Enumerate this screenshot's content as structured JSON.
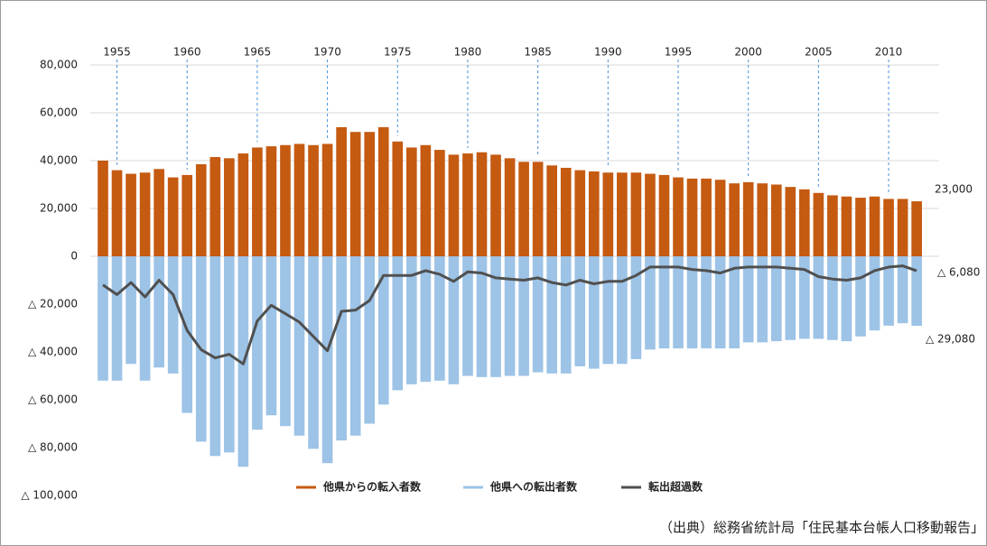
{
  "chart_data": {
    "type": "bar-line",
    "x": [
      1954,
      1955,
      1956,
      1957,
      1958,
      1959,
      1960,
      1961,
      1962,
      1963,
      1964,
      1965,
      1966,
      1967,
      1968,
      1969,
      1970,
      1971,
      1972,
      1973,
      1974,
      1975,
      1976,
      1977,
      1978,
      1979,
      1980,
      1981,
      1982,
      1983,
      1984,
      1985,
      1986,
      1987,
      1988,
      1989,
      1990,
      1991,
      1992,
      1993,
      1994,
      1995,
      1996,
      1997,
      1998,
      1999,
      2000,
      2001,
      2002,
      2003,
      2004,
      2005,
      2006,
      2007,
      2008,
      2009,
      2010,
      2011,
      2012
    ],
    "xlim": [
      1953.1,
      2013.6
    ],
    "xticks": [
      1955,
      1960,
      1965,
      1970,
      1975,
      1980,
      1985,
      1990,
      1995,
      2000,
      2005,
      2010
    ],
    "ylim": [
      -100000,
      80000
    ],
    "yticks": [
      {
        "value": 80000,
        "label": "80,000"
      },
      {
        "value": 60000,
        "label": "60,000"
      },
      {
        "value": 40000,
        "label": "40,000"
      },
      {
        "value": 20000,
        "label": "20,000"
      },
      0,
      {
        "value": -20000,
        "label": "△ 20,000"
      },
      {
        "value": -40000,
        "label": "△ 40,000"
      },
      {
        "value": -60000,
        "label": "△ 60,000"
      },
      {
        "value": -80000,
        "label": "△ 80,000"
      },
      {
        "value": -100000,
        "label": "△ 100,000"
      }
    ],
    "grid": true,
    "series": [
      {
        "name": "他県からの転入者数",
        "color": "#c55a11",
        "kind": "bar",
        "values": [
          40000,
          36000,
          34500,
          35000,
          36500,
          33000,
          34000,
          38500,
          41500,
          41000,
          43000,
          45500,
          46000,
          46500,
          47000,
          46500,
          47000,
          54000,
          52000,
          52000,
          54000,
          48000,
          45500,
          46500,
          44500,
          42500,
          43000,
          43500,
          42500,
          41000,
          39500,
          39500,
          38000,
          37000,
          36000,
          35500,
          35000,
          35000,
          35000,
          34500,
          34000,
          33000,
          32500,
          32500,
          32000,
          30500,
          31000,
          30500,
          30000,
          29000,
          28000,
          26500,
          25500,
          25000,
          24500,
          25000,
          24000,
          24000,
          23000
        ]
      },
      {
        "name": "他県への転出者数",
        "color": "#9dc3e6",
        "kind": "bar",
        "values": [
          -52000,
          -52000,
          -45000,
          -52000,
          -46500,
          -49000,
          -65500,
          -77500,
          -83500,
          -82000,
          -88000,
          -72500,
          -66500,
          -71000,
          -75000,
          -80500,
          -86500,
          -77000,
          -75000,
          -70000,
          -62000,
          -56000,
          -53500,
          -52500,
          -52000,
          -53500,
          -50000,
          -50500,
          -50500,
          -50000,
          -50000,
          -48500,
          -49000,
          -49000,
          -46000,
          -47000,
          -45000,
          -45000,
          -43000,
          -39000,
          -38500,
          -38500,
          -38500,
          -38500,
          -38500,
          -38500,
          -36000,
          -36000,
          -35500,
          -35000,
          -34500,
          -34500,
          -35000,
          -35500,
          -33500,
          -31000,
          -29000,
          -28000,
          -29080
        ]
      },
      {
        "name": "転出超過数",
        "color": "#505050",
        "kind": "line",
        "values": [
          -12000,
          -16000,
          -11000,
          -17000,
          -10000,
          -16000,
          -31000,
          -39000,
          -42500,
          -41000,
          -45000,
          -27000,
          -20500,
          -24000,
          -27500,
          -33500,
          -39500,
          -23000,
          -22500,
          -18500,
          -8000,
          -8000,
          -8000,
          -6000,
          -7500,
          -10500,
          -6500,
          -7000,
          -9000,
          -9500,
          -10000,
          -9000,
          -11000,
          -12000,
          -10000,
          -11500,
          -10500,
          -10500,
          -8000,
          -4500,
          -4500,
          -4500,
          -5500,
          -6000,
          -7000,
          -5000,
          -4500,
          -4500,
          -4500,
          -5000,
          -5500,
          -8500,
          -9500,
          -10000,
          -9000,
          -6000,
          -4500,
          -4000,
          -6080
        ]
      }
    ],
    "annotations": [
      "23,000",
      "△ 6,080",
      "△ 29,080"
    ],
    "source": "（出典）総務省統計局「住民基本台帳人口移動報告」"
  }
}
